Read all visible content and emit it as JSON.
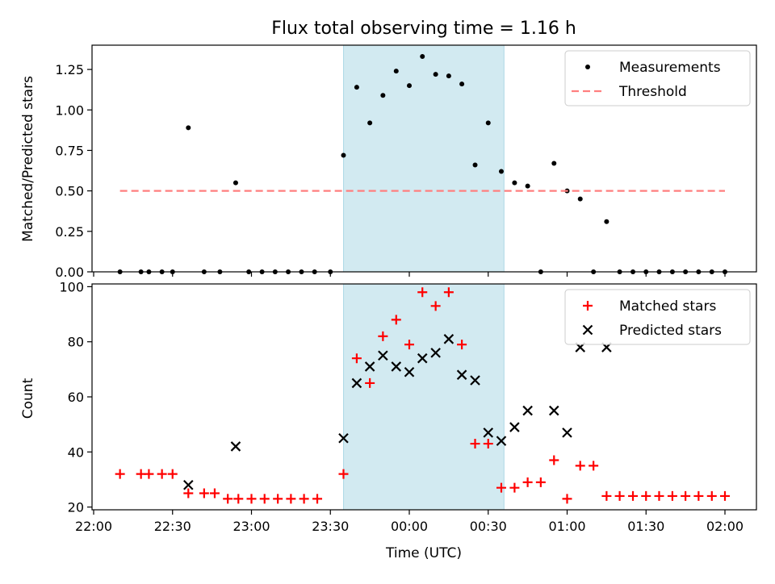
{
  "figure_title": "Flux total observing time = 1.16 h",
  "x_axis": {
    "label": "Time (UTC)",
    "ticks": [
      "22:00",
      "22:30",
      "23:00",
      "23:30",
      "00:00",
      "00:30",
      "01:00",
      "01:30",
      "02:00"
    ]
  },
  "colors": {
    "measurement": "#000000",
    "threshold": "#ff7f7f",
    "matched": "#ff0000",
    "predicted": "#000000",
    "shade": "#add8e6"
  },
  "chart_data": [
    {
      "type": "scatter",
      "title": "Flux total observing time = 1.16 h",
      "xlabel": "",
      "ylabel": "Matched/Predicted stars",
      "x_unit": "hours from 22:00 UTC",
      "ylim": [
        0,
        1.4
      ],
      "yticks": [
        "0.00",
        "0.25",
        "0.50",
        "0.75",
        "1.00",
        "1.25"
      ],
      "shaded_interval": [
        "23:35",
        "00:36"
      ],
      "legend": {
        "position": "top-right",
        "entries": [
          "Measurements",
          "Threshold"
        ]
      },
      "series": [
        {
          "name": "Measurements",
          "style": "dot",
          "points": [
            [
              0.167,
              0
            ],
            [
              0.3,
              0
            ],
            [
              0.35,
              0
            ],
            [
              0.433,
              0
            ],
            [
              0.5,
              0
            ],
            [
              0.6,
              0.89
            ],
            [
              0.7,
              0
            ],
            [
              0.8,
              0
            ],
            [
              0.9,
              0.55
            ],
            [
              0.983,
              0
            ],
            [
              1.067,
              0
            ],
            [
              1.15,
              0
            ],
            [
              1.233,
              0
            ],
            [
              1.317,
              0
            ],
            [
              1.4,
              0
            ],
            [
              1.5,
              0
            ],
            [
              1.583,
              0.72
            ],
            [
              1.667,
              1.14
            ],
            [
              1.75,
              0.92
            ],
            [
              1.833,
              1.09
            ],
            [
              1.917,
              1.24
            ],
            [
              2.0,
              1.15
            ],
            [
              2.083,
              1.33
            ],
            [
              2.167,
              1.22
            ],
            [
              2.25,
              1.21
            ],
            [
              2.333,
              1.16
            ],
            [
              2.417,
              0.66
            ],
            [
              2.5,
              0.92
            ],
            [
              2.583,
              0.62
            ],
            [
              2.667,
              0.55
            ],
            [
              2.75,
              0.53
            ],
            [
              2.833,
              0
            ],
            [
              2.917,
              0.67
            ],
            [
              3.0,
              0.5
            ],
            [
              3.083,
              0.45
            ],
            [
              3.167,
              0
            ],
            [
              3.25,
              0.31
            ],
            [
              3.333,
              0
            ],
            [
              3.417,
              0
            ],
            [
              3.5,
              0
            ],
            [
              3.583,
              0
            ],
            [
              3.667,
              0
            ],
            [
              3.75,
              0
            ],
            [
              3.833,
              0
            ],
            [
              3.917,
              0
            ],
            [
              4.0,
              0
            ]
          ]
        },
        {
          "name": "Threshold",
          "style": "dashed-line",
          "y": 0.5,
          "x_range": [
            0.167,
            4.0
          ]
        }
      ]
    },
    {
      "type": "scatter",
      "title": "",
      "xlabel": "Time (UTC)",
      "ylabel": "Count",
      "x_unit": "hours from 22:00 UTC",
      "ylim": [
        19,
        101
      ],
      "yticks": [
        "20",
        "40",
        "60",
        "80",
        "100"
      ],
      "shaded_interval": [
        "23:35",
        "00:36"
      ],
      "legend": {
        "position": "top-right",
        "entries": [
          "Matched stars",
          "Predicted stars"
        ]
      },
      "series": [
        {
          "name": "Matched stars",
          "marker": "plus",
          "points": [
            [
              0.167,
              32
            ],
            [
              0.3,
              32
            ],
            [
              0.35,
              32
            ],
            [
              0.433,
              32
            ],
            [
              0.5,
              32
            ],
            [
              0.6,
              25
            ],
            [
              0.7,
              25
            ],
            [
              0.767,
              25
            ],
            [
              0.85,
              23
            ],
            [
              0.917,
              23
            ],
            [
              1.0,
              23
            ],
            [
              1.083,
              23
            ],
            [
              1.167,
              23
            ],
            [
              1.25,
              23
            ],
            [
              1.333,
              23
            ],
            [
              1.417,
              23
            ],
            [
              1.583,
              32
            ],
            [
              1.667,
              74
            ],
            [
              1.75,
              65
            ],
            [
              1.833,
              82
            ],
            [
              1.917,
              88
            ],
            [
              2.0,
              79
            ],
            [
              2.083,
              98
            ],
            [
              2.167,
              93
            ],
            [
              2.25,
              98
            ],
            [
              2.333,
              79
            ],
            [
              2.417,
              43
            ],
            [
              2.5,
              43
            ],
            [
              2.583,
              27
            ],
            [
              2.667,
              27
            ],
            [
              2.75,
              29
            ],
            [
              2.833,
              29
            ],
            [
              2.917,
              37
            ],
            [
              3.0,
              23
            ],
            [
              3.083,
              35
            ],
            [
              3.167,
              35
            ],
            [
              3.25,
              24
            ],
            [
              3.333,
              24
            ],
            [
              3.417,
              24
            ],
            [
              3.5,
              24
            ],
            [
              3.583,
              24
            ],
            [
              3.667,
              24
            ],
            [
              3.75,
              24
            ],
            [
              3.833,
              24
            ],
            [
              3.917,
              24
            ],
            [
              4.0,
              24
            ]
          ]
        },
        {
          "name": "Predicted stars",
          "marker": "x",
          "points": [
            [
              0.6,
              28
            ],
            [
              0.9,
              42
            ],
            [
              1.583,
              45
            ],
            [
              1.667,
              65
            ],
            [
              1.75,
              71
            ],
            [
              1.833,
              75
            ],
            [
              1.917,
              71
            ],
            [
              2.0,
              69
            ],
            [
              2.083,
              74
            ],
            [
              2.167,
              76
            ],
            [
              2.25,
              81
            ],
            [
              2.333,
              68
            ],
            [
              2.417,
              66
            ],
            [
              2.5,
              47
            ],
            [
              2.583,
              44
            ],
            [
              2.667,
              49
            ],
            [
              2.75,
              55
            ],
            [
              2.917,
              55
            ],
            [
              3.0,
              47
            ],
            [
              3.083,
              78
            ],
            [
              3.25,
              78
            ]
          ]
        }
      ]
    }
  ]
}
